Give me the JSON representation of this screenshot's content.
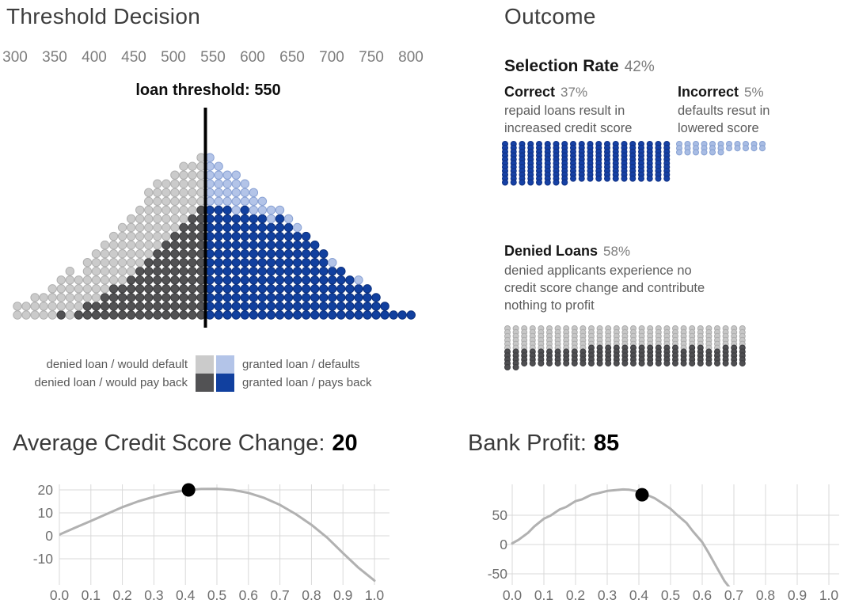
{
  "chart_data": [
    {
      "type": "scatter",
      "subtype": "dot-histogram",
      "title": "Threshold Decision",
      "x_ticks": [
        "300",
        "350",
        "400",
        "450",
        "500",
        "550",
        "600",
        "650",
        "700",
        "750",
        "800"
      ],
      "threshold_value": 550,
      "threshold_label": "loan threshold: 550",
      "left_totals": [
        2,
        2,
        3,
        3,
        4,
        5,
        6,
        5,
        7,
        8,
        9,
        10,
        11,
        12,
        13,
        15,
        16,
        16,
        17,
        18,
        18,
        19
      ],
      "left_darks": [
        0,
        0,
        0,
        0,
        0,
        1,
        0,
        1,
        2,
        2,
        3,
        4,
        4,
        5,
        6,
        7,
        8,
        9,
        10,
        11,
        12,
        13
      ],
      "right_totals": [
        19,
        18,
        17,
        17,
        16,
        15,
        14,
        13,
        13,
        12,
        11,
        10,
        9,
        8,
        7,
        6,
        5,
        5,
        4,
        3,
        2,
        1,
        1,
        1
      ],
      "right_lights": [
        6,
        5,
        4,
        5,
        3,
        3,
        2,
        2,
        1,
        1,
        1,
        0,
        0,
        0,
        1,
        0,
        0,
        1,
        0,
        0,
        0,
        0,
        0,
        0
      ],
      "colors": {
        "denied_default": "#cbcbcb",
        "denied_payback": "#525254",
        "granted_default": "#b3c4e8",
        "granted_payback": "#11409f"
      },
      "legend": {
        "denied_default": "denied loan / would default",
        "denied_payback": "denied loan / would pay back",
        "granted_default": "granted loan / defaults",
        "granted_payback": "granted loan / pays back"
      }
    },
    {
      "type": "line",
      "title_prefix": "Average Credit Score Change:",
      "value": "20",
      "x": [
        0,
        0.05,
        0.1,
        0.15,
        0.2,
        0.25,
        0.3,
        0.35,
        0.4,
        0.45,
        0.5,
        0.55,
        0.6,
        0.65,
        0.7,
        0.75,
        0.8,
        0.85,
        0.9,
        0.95,
        1.0
      ],
      "y": [
        0.5,
        3.5,
        6.5,
        9.5,
        12.5,
        15,
        17,
        18.7,
        19.8,
        20.4,
        20.5,
        20,
        18.7,
        16.5,
        13.5,
        9.5,
        4.8,
        -0.8,
        -7.5,
        -14,
        -19.5
      ],
      "marker": {
        "x": 0.41,
        "y": 20
      },
      "xticks": [
        "0.0",
        "0.1",
        "0.2",
        "0.3",
        "0.4",
        "0.5",
        "0.6",
        "0.7",
        "0.8",
        "0.9",
        "1.0"
      ],
      "yticks": [
        20,
        10,
        0,
        -10
      ],
      "xlim": [
        0,
        1
      ],
      "ylim": [
        -21,
        22
      ],
      "grid": true
    },
    {
      "type": "line",
      "title_prefix": "Bank Profit:",
      "value": "85",
      "x": [
        0,
        0.02,
        0.05,
        0.07,
        0.1,
        0.12,
        0.15,
        0.17,
        0.2,
        0.22,
        0.25,
        0.27,
        0.3,
        0.32,
        0.35,
        0.37,
        0.4,
        0.42,
        0.45,
        0.47,
        0.5,
        0.52,
        0.55,
        0.57,
        0.6,
        0.62,
        0.65,
        0.67,
        0.69
      ],
      "y": [
        2,
        8,
        20,
        31,
        44,
        49,
        60,
        64,
        74,
        77,
        85,
        87.5,
        91.5,
        92.5,
        94,
        93.5,
        90.5,
        86,
        79,
        72,
        61,
        51,
        37,
        23,
        4,
        -14,
        -43,
        -62,
        -76
      ],
      "marker": {
        "x": 0.41,
        "y": 85
      },
      "xticks": [
        "0.0",
        "0.1",
        "0.2",
        "0.3",
        "0.4",
        "0.5",
        "0.6",
        "0.7",
        "0.8",
        "0.9",
        "1.0"
      ],
      "yticks": [
        50,
        0,
        -50
      ],
      "xlim": [
        0,
        1
      ],
      "ylim": [
        -69,
        97
      ],
      "grid": true
    }
  ],
  "outcome": {
    "title": "Outcome",
    "selection_rate": {
      "label": "Selection Rate",
      "value": "42%"
    },
    "correct": {
      "label": "Correct",
      "value": "37%",
      "desc": [
        "repaid loans result in",
        "increased credit score"
      ],
      "columns": [
        11,
        11,
        11,
        11,
        11,
        11,
        11,
        11,
        10,
        10,
        10,
        10,
        10,
        10,
        10,
        10,
        10,
        10,
        10,
        10
      ]
    },
    "incorrect": {
      "label": "Incorrect",
      "value": "5%",
      "desc": [
        "defaults resut in",
        "lowered score"
      ],
      "columns": [
        3,
        3,
        3,
        3,
        3,
        3,
        2,
        2,
        2,
        2,
        2
      ]
    },
    "denied": {
      "label": "Denied Loans",
      "value": "58%",
      "desc": [
        "denied applicants experience no",
        "credit score change and contribute",
        "nothing to profit"
      ],
      "columns": [
        11,
        11,
        10,
        10,
        10,
        10,
        10,
        10,
        10,
        10,
        10,
        10,
        10,
        10,
        10,
        10,
        10,
        10,
        10,
        10,
        10,
        10,
        10,
        10,
        10,
        10,
        10,
        10,
        10
      ],
      "dark_counts": [
        5,
        5,
        4,
        4,
        4,
        4,
        4,
        4,
        4,
        4,
        5,
        5,
        5,
        5,
        5,
        5,
        5,
        5,
        5,
        5,
        5,
        4,
        5,
        5,
        4,
        4,
        5,
        5,
        5
      ]
    },
    "colors": {
      "correct": "#1641a5",
      "incorrect": "#a9bde4",
      "denied_light": "#c7c7c7",
      "denied_dark": "#4f4f52"
    }
  }
}
